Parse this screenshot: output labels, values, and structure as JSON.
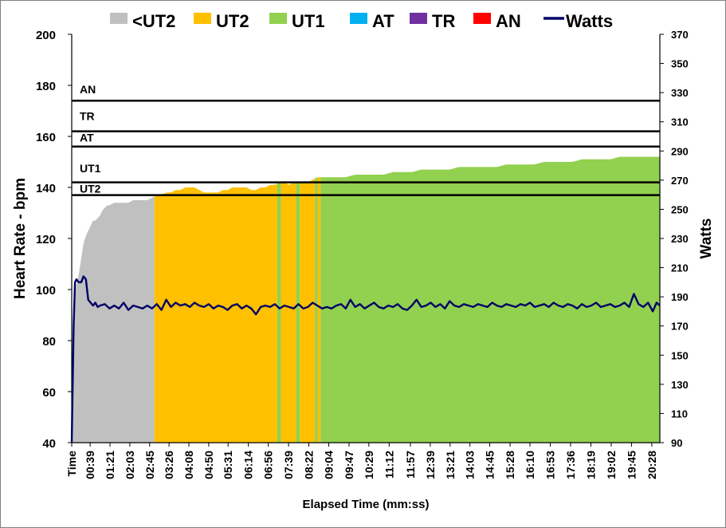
{
  "chart_data": {
    "type": "area",
    "title": "",
    "xlabel": "Elapsed Time (mm:ss)",
    "ylabel": "Heart Rate - bpm",
    "y2label": "Watts",
    "ylim": [
      40,
      200
    ],
    "y2lim": [
      90,
      370
    ],
    "yticks": [
      40,
      60,
      80,
      100,
      120,
      140,
      160,
      180,
      200
    ],
    "y2ticks": [
      90,
      110,
      130,
      150,
      170,
      190,
      210,
      230,
      250,
      270,
      290,
      310,
      330,
      350,
      370
    ],
    "xlim_seconds": [
      0,
      1245
    ],
    "xticks": [
      {
        "label": "Time",
        "s": 0
      },
      {
        "label": "00:39",
        "s": 39
      },
      {
        "label": "01:21",
        "s": 81
      },
      {
        "label": "02:03",
        "s": 123
      },
      {
        "label": "02:45",
        "s": 165
      },
      {
        "label": "03:26",
        "s": 206
      },
      {
        "label": "04:08",
        "s": 248
      },
      {
        "label": "04:50",
        "s": 290
      },
      {
        "label": "05:31",
        "s": 331
      },
      {
        "label": "06:14",
        "s": 374
      },
      {
        "label": "06:56",
        "s": 416
      },
      {
        "label": "07:39",
        "s": 459
      },
      {
        "label": "08:22",
        "s": 502
      },
      {
        "label": "09:04",
        "s": 544
      },
      {
        "label": "09:47",
        "s": 587
      },
      {
        "label": "10:29",
        "s": 629
      },
      {
        "label": "11:12",
        "s": 672
      },
      {
        "label": "11:57",
        "s": 717
      },
      {
        "label": "12:39",
        "s": 759
      },
      {
        "label": "13:21",
        "s": 801
      },
      {
        "label": "14:03",
        "s": 843
      },
      {
        "label": "14:45",
        "s": 885
      },
      {
        "label": "15:28",
        "s": 928
      },
      {
        "label": "16:10",
        "s": 970
      },
      {
        "label": "16:53",
        "s": 1013
      },
      {
        "label": "17:36",
        "s": 1056
      },
      {
        "label": "18:19",
        "s": 1099
      },
      {
        "label": "19:02",
        "s": 1142
      },
      {
        "label": "19:45",
        "s": 1185
      },
      {
        "label": "20:28",
        "s": 1228
      }
    ],
    "legend": [
      {
        "label": "<UT2",
        "color": "#c0c0c0",
        "kind": "box"
      },
      {
        "label": "UT2",
        "color": "#ffc000",
        "kind": "box"
      },
      {
        "label": "UT1",
        "color": "#92d050",
        "kind": "box"
      },
      {
        "label": "AT",
        "color": "#00b0f0",
        "kind": "box"
      },
      {
        "label": "TR",
        "color": "#7030a0",
        "kind": "box"
      },
      {
        "label": "AN",
        "color": "#ff0000",
        "kind": "box"
      },
      {
        "label": "Watts",
        "color": "#000066",
        "kind": "line"
      }
    ],
    "zone_thresholds": [
      {
        "label": "UT2",
        "hr": 137
      },
      {
        "label": "UT1",
        "hr": 142
      },
      {
        "label": "AT",
        "hr": 156
      },
      {
        "label": "TR",
        "hr": 162
      },
      {
        "label": "AN",
        "hr": 174
      }
    ],
    "zone_label_hr": {
      "UT2": 139.5,
      "UT1": 147.5,
      "AT": 159.5,
      "TR": 168,
      "AN": 178.5
    },
    "heart_rate_series": {
      "name": "Heart Rate",
      "points": [
        [
          0,
          40
        ],
        [
          5,
          95
        ],
        [
          10,
          102
        ],
        [
          15,
          106
        ],
        [
          20,
          112
        ],
        [
          25,
          118
        ],
        [
          30,
          121
        ],
        [
          35,
          123
        ],
        [
          40,
          125
        ],
        [
          45,
          127
        ],
        [
          50,
          127
        ],
        [
          55,
          128
        ],
        [
          60,
          129
        ],
        [
          65,
          131
        ],
        [
          70,
          132
        ],
        [
          75,
          133
        ],
        [
          80,
          133
        ],
        [
          90,
          134
        ],
        [
          100,
          134
        ],
        [
          110,
          134
        ],
        [
          120,
          134
        ],
        [
          130,
          135
        ],
        [
          140,
          135
        ],
        [
          150,
          135
        ],
        [
          160,
          135
        ],
        [
          170,
          136
        ],
        [
          180,
          137
        ],
        [
          190,
          137
        ],
        [
          200,
          138
        ],
        [
          210,
          138
        ],
        [
          220,
          139
        ],
        [
          230,
          139
        ],
        [
          240,
          140
        ],
        [
          250,
          140
        ],
        [
          260,
          140
        ],
        [
          270,
          139
        ],
        [
          280,
          138
        ],
        [
          290,
          138
        ],
        [
          300,
          138
        ],
        [
          310,
          138
        ],
        [
          320,
          139
        ],
        [
          330,
          139
        ],
        [
          340,
          140
        ],
        [
          350,
          140
        ],
        [
          360,
          140
        ],
        [
          370,
          140
        ],
        [
          380,
          139
        ],
        [
          390,
          139
        ],
        [
          400,
          140
        ],
        [
          410,
          140
        ],
        [
          420,
          141
        ],
        [
          430,
          141
        ],
        [
          440,
          142
        ],
        [
          450,
          142
        ],
        [
          460,
          141
        ],
        [
          470,
          142
        ],
        [
          480,
          142
        ],
        [
          490,
          142
        ],
        [
          500,
          142
        ],
        [
          510,
          143
        ],
        [
          520,
          144
        ],
        [
          530,
          144
        ],
        [
          540,
          144
        ],
        [
          560,
          144
        ],
        [
          580,
          144
        ],
        [
          600,
          145
        ],
        [
          620,
          145
        ],
        [
          640,
          145
        ],
        [
          660,
          145
        ],
        [
          680,
          146
        ],
        [
          700,
          146
        ],
        [
          720,
          146
        ],
        [
          740,
          147
        ],
        [
          760,
          147
        ],
        [
          780,
          147
        ],
        [
          800,
          147
        ],
        [
          820,
          148
        ],
        [
          840,
          148
        ],
        [
          860,
          148
        ],
        [
          880,
          148
        ],
        [
          900,
          148
        ],
        [
          920,
          149
        ],
        [
          940,
          149
        ],
        [
          960,
          149
        ],
        [
          980,
          149
        ],
        [
          1000,
          150
        ],
        [
          1020,
          150
        ],
        [
          1040,
          150
        ],
        [
          1060,
          150
        ],
        [
          1080,
          151
        ],
        [
          1100,
          151
        ],
        [
          1120,
          151
        ],
        [
          1140,
          151
        ],
        [
          1160,
          152
        ],
        [
          1180,
          152
        ],
        [
          1200,
          152
        ],
        [
          1220,
          152
        ],
        [
          1245,
          152
        ]
      ]
    },
    "hr_zone_bands": [
      {
        "zone": "<UT2",
        "color": "#c0c0c0",
        "from": 0,
        "to": 175
      },
      {
        "zone": "UT2",
        "color": "#ffc000",
        "from": 175,
        "to": 435
      },
      {
        "zone": "UT1",
        "color": "#92d050",
        "from": 435,
        "to": 443
      },
      {
        "zone": "UT2",
        "color": "#ffc000",
        "from": 443,
        "to": 475
      },
      {
        "zone": "UT1",
        "color": "#92d050",
        "from": 475,
        "to": 483
      },
      {
        "zone": "UT2",
        "color": "#ffc000",
        "from": 483,
        "to": 515
      },
      {
        "zone": "UT1",
        "color": "#92d050",
        "from": 515,
        "to": 521
      },
      {
        "zone": "UT2",
        "color": "#ffc000",
        "from": 521,
        "to": 527
      },
      {
        "zone": "UT1",
        "color": "#92d050",
        "from": 527,
        "to": 1245
      }
    ],
    "watts_series": {
      "name": "Watts",
      "color": "#000066",
      "points": [
        [
          0,
          90
        ],
        [
          4,
          170
        ],
        [
          7,
          200
        ],
        [
          10,
          202
        ],
        [
          15,
          200
        ],
        [
          20,
          200
        ],
        [
          25,
          204
        ],
        [
          30,
          202
        ],
        [
          35,
          188
        ],
        [
          40,
          186
        ],
        [
          45,
          184
        ],
        [
          50,
          186
        ],
        [
          55,
          183
        ],
        [
          60,
          184
        ],
        [
          70,
          185
        ],
        [
          80,
          182
        ],
        [
          90,
          184
        ],
        [
          100,
          182
        ],
        [
          110,
          186
        ],
        [
          120,
          181
        ],
        [
          130,
          184
        ],
        [
          140,
          183
        ],
        [
          150,
          182
        ],
        [
          160,
          184
        ],
        [
          170,
          182
        ],
        [
          180,
          185
        ],
        [
          190,
          181
        ],
        [
          200,
          188
        ],
        [
          210,
          183
        ],
        [
          220,
          186
        ],
        [
          230,
          184
        ],
        [
          240,
          185
        ],
        [
          250,
          183
        ],
        [
          260,
          186
        ],
        [
          270,
          184
        ],
        [
          280,
          183
        ],
        [
          290,
          185
        ],
        [
          300,
          182
        ],
        [
          310,
          184
        ],
        [
          320,
          183
        ],
        [
          330,
          181
        ],
        [
          340,
          184
        ],
        [
          350,
          185
        ],
        [
          360,
          182
        ],
        [
          370,
          184
        ],
        [
          380,
          182
        ],
        [
          390,
          178
        ],
        [
          400,
          183
        ],
        [
          410,
          184
        ],
        [
          420,
          183
        ],
        [
          430,
          185
        ],
        [
          440,
          182
        ],
        [
          450,
          184
        ],
        [
          460,
          183
        ],
        [
          470,
          182
        ],
        [
          480,
          185
        ],
        [
          490,
          182
        ],
        [
          500,
          183
        ],
        [
          510,
          186
        ],
        [
          520,
          184
        ],
        [
          530,
          182
        ],
        [
          540,
          183
        ],
        [
          550,
          182
        ],
        [
          560,
          184
        ],
        [
          570,
          185
        ],
        [
          580,
          182
        ],
        [
          590,
          188
        ],
        [
          600,
          183
        ],
        [
          610,
          185
        ],
        [
          620,
          182
        ],
        [
          630,
          184
        ],
        [
          640,
          186
        ],
        [
          650,
          183
        ],
        [
          660,
          182
        ],
        [
          670,
          184
        ],
        [
          680,
          183
        ],
        [
          690,
          185
        ],
        [
          700,
          182
        ],
        [
          710,
          181
        ],
        [
          720,
          184
        ],
        [
          730,
          188
        ],
        [
          740,
          183
        ],
        [
          750,
          184
        ],
        [
          760,
          186
        ],
        [
          770,
          183
        ],
        [
          780,
          185
        ],
        [
          790,
          182
        ],
        [
          800,
          187
        ],
        [
          810,
          184
        ],
        [
          820,
          183
        ],
        [
          830,
          185
        ],
        [
          840,
          184
        ],
        [
          850,
          183
        ],
        [
          860,
          185
        ],
        [
          870,
          184
        ],
        [
          880,
          183
        ],
        [
          890,
          186
        ],
        [
          900,
          184
        ],
        [
          910,
          183
        ],
        [
          920,
          185
        ],
        [
          930,
          184
        ],
        [
          940,
          183
        ],
        [
          950,
          185
        ],
        [
          960,
          184
        ],
        [
          970,
          186
        ],
        [
          980,
          183
        ],
        [
          990,
          184
        ],
        [
          1000,
          185
        ],
        [
          1010,
          183
        ],
        [
          1020,
          186
        ],
        [
          1030,
          184
        ],
        [
          1040,
          183
        ],
        [
          1050,
          185
        ],
        [
          1060,
          184
        ],
        [
          1070,
          182
        ],
        [
          1080,
          185
        ],
        [
          1090,
          183
        ],
        [
          1100,
          184
        ],
        [
          1110,
          186
        ],
        [
          1120,
          183
        ],
        [
          1130,
          184
        ],
        [
          1140,
          185
        ],
        [
          1150,
          183
        ],
        [
          1160,
          184
        ],
        [
          1170,
          186
        ],
        [
          1180,
          183
        ],
        [
          1190,
          192
        ],
        [
          1200,
          185
        ],
        [
          1210,
          183
        ],
        [
          1220,
          186
        ],
        [
          1230,
          180
        ],
        [
          1238,
          186
        ],
        [
          1245,
          184
        ]
      ]
    }
  }
}
